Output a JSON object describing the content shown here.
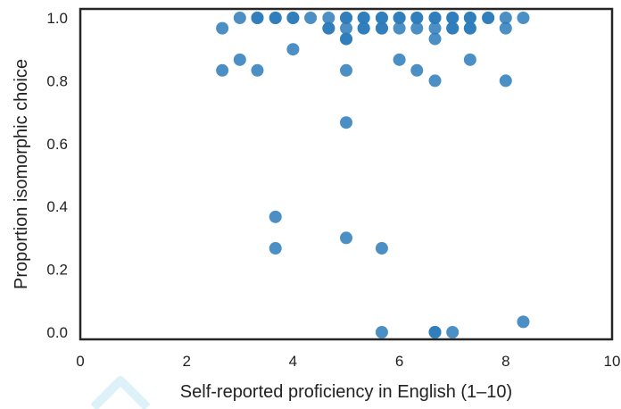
{
  "chart_data": {
    "type": "scatter",
    "title": "",
    "xlabel": "Self-reported proficiency in English (1–10)",
    "ylabel": "Proportion isomorphic choice",
    "xlim": [
      0,
      10
    ],
    "ylim": [
      0,
      1.0
    ],
    "xticks": [
      "0",
      "2",
      "4",
      "6",
      "8",
      "10"
    ],
    "yticks": [
      "0.0",
      "0.2",
      "0.4",
      "0.6",
      "0.8",
      "1.0"
    ],
    "grid": false,
    "legend": "none",
    "marker_color": "#2b7bba",
    "points": [
      {
        "x": 2.67,
        "y": 0.967
      },
      {
        "x": 2.67,
        "y": 0.833
      },
      {
        "x": 3.0,
        "y": 1.0
      },
      {
        "x": 3.0,
        "y": 0.867
      },
      {
        "x": 3.33,
        "y": 1.0
      },
      {
        "x": 3.33,
        "y": 1.0
      },
      {
        "x": 3.33,
        "y": 0.833
      },
      {
        "x": 3.67,
        "y": 1.0
      },
      {
        "x": 3.67,
        "y": 1.0
      },
      {
        "x": 3.67,
        "y": 0.367
      },
      {
        "x": 3.67,
        "y": 0.267
      },
      {
        "x": 4.0,
        "y": 1.0
      },
      {
        "x": 4.0,
        "y": 1.0
      },
      {
        "x": 4.0,
        "y": 0.9
      },
      {
        "x": 4.33,
        "y": 1.0
      },
      {
        "x": 4.67,
        "y": 1.0
      },
      {
        "x": 4.67,
        "y": 0.967
      },
      {
        "x": 4.67,
        "y": 0.967
      },
      {
        "x": 5.0,
        "y": 1.0
      },
      {
        "x": 5.0,
        "y": 1.0
      },
      {
        "x": 5.0,
        "y": 0.967
      },
      {
        "x": 5.0,
        "y": 0.933
      },
      {
        "x": 5.0,
        "y": 0.933
      },
      {
        "x": 5.0,
        "y": 0.833
      },
      {
        "x": 5.0,
        "y": 0.667
      },
      {
        "x": 5.0,
        "y": 0.3
      },
      {
        "x": 5.33,
        "y": 1.0
      },
      {
        "x": 5.33,
        "y": 1.0
      },
      {
        "x": 5.33,
        "y": 0.967
      },
      {
        "x": 5.33,
        "y": 0.967
      },
      {
        "x": 5.67,
        "y": 1.0
      },
      {
        "x": 5.67,
        "y": 1.0
      },
      {
        "x": 5.67,
        "y": 0.967
      },
      {
        "x": 5.67,
        "y": 0.967
      },
      {
        "x": 5.67,
        "y": 0.267
      },
      {
        "x": 5.67,
        "y": 0.0
      },
      {
        "x": 6.0,
        "y": 1.0
      },
      {
        "x": 6.0,
        "y": 1.0
      },
      {
        "x": 6.0,
        "y": 0.967
      },
      {
        "x": 6.0,
        "y": 0.867
      },
      {
        "x": 6.33,
        "y": 1.0
      },
      {
        "x": 6.33,
        "y": 1.0
      },
      {
        "x": 6.33,
        "y": 0.967
      },
      {
        "x": 6.33,
        "y": 0.833
      },
      {
        "x": 6.67,
        "y": 1.0
      },
      {
        "x": 6.67,
        "y": 1.0
      },
      {
        "x": 6.67,
        "y": 0.967
      },
      {
        "x": 6.67,
        "y": 0.933
      },
      {
        "x": 6.67,
        "y": 0.8
      },
      {
        "x": 6.67,
        "y": 0.0
      },
      {
        "x": 6.67,
        "y": 0.0
      },
      {
        "x": 7.0,
        "y": 1.0
      },
      {
        "x": 7.0,
        "y": 1.0
      },
      {
        "x": 7.0,
        "y": 0.967
      },
      {
        "x": 7.0,
        "y": 0.967
      },
      {
        "x": 7.0,
        "y": 0.0
      },
      {
        "x": 7.33,
        "y": 1.0
      },
      {
        "x": 7.33,
        "y": 1.0
      },
      {
        "x": 7.33,
        "y": 0.967
      },
      {
        "x": 7.33,
        "y": 0.967
      },
      {
        "x": 7.33,
        "y": 0.867
      },
      {
        "x": 7.67,
        "y": 1.0
      },
      {
        "x": 7.67,
        "y": 1.0
      },
      {
        "x": 8.0,
        "y": 1.0
      },
      {
        "x": 8.0,
        "y": 0.967
      },
      {
        "x": 8.0,
        "y": 0.8
      },
      {
        "x": 8.33,
        "y": 1.0
      },
      {
        "x": 8.33,
        "y": 0.033
      }
    ]
  }
}
